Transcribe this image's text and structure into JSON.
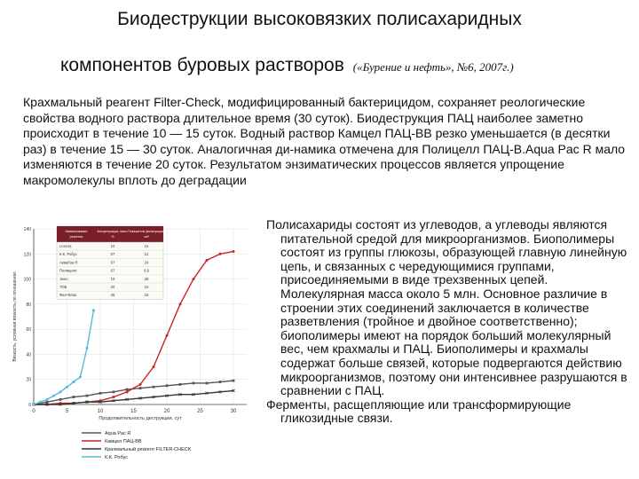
{
  "title_line1": "Биодеструкции высоковязких полисахаридных",
  "title_line2": "компонентов буровых растворов",
  "title_source": "(«Бурение и нефть», №6, 2007г.)",
  "intro_text": "Крахмальный реагент Filter-Check, модифицированный бактерицидом, сохраняет реологические свойства водного раствора длительное время (30 суток). Биодеструкция ПАЦ наиболее заметно происходит в течение 10 — 15 суток. Водный раствор Камцел ПАЦ-ВВ резко уменьшается (в десятки раз) в течение 15 — 30 суток. Аналогичная ди-намика отмечена для Полицелл ПАЦ-В.Aqua Pac R мало изменяются в течение 20 суток. Результатом энзиматических процессов является упрощение макромолекулы вплоть до деградации",
  "right_text_1": "Полисахариды состоят из углеводов, а углеводы являются питательной средой для микроорганизмов. Биополимеры состоят из группы глюкозы, образующей главную линейную цепь, и связанных с чередующимися группами, присоединяемыми в виде трехзвенных цепей. Молекулярная масса около 5 млн. Основное различие в строении этих соединений заключается в количестве разветвления (тройное и двойное соответственно); биополимеры имеют на порядок больший молекулярный вес, чем крахмалы и ПАЦ. Биополимеры и крахмалы содержат больше связей, которые подвергаются действию микроорганизмов, поэтому они интенсивнее разрушаются в сравнении с ПАЦ.",
  "right_text_2": "Ферменты, расщепляющие или трансформирующие гликозидные связи.",
  "figure": {
    "table": {
      "headers": [
        "Наименование реагента",
        "Концентрация, масс. %",
        "Показатель фильтрации, см³"
      ],
      "rows": [
        [
          "Lexeza",
          "10",
          "15"
        ],
        [
          "К.К. Робус",
          "07",
          "12"
        ],
        [
          "АкваПак R",
          "07",
          "24"
        ],
        [
          "Полицелл",
          "07",
          "6,6"
        ],
        [
          "Экол",
          "10",
          "28"
        ],
        [
          "ТОБ",
          "20",
          "10"
        ],
        [
          "Фил-Флок",
          "45",
          "18"
        ]
      ]
    },
    "chart_data": {
      "type": "line",
      "title": "",
      "ylabel": "Вязкость, условная вязкость по отношению",
      "xlabel": "Продолжительность деструкции, сут",
      "x_ticks": [
        "0",
        "5",
        "10",
        "15",
        "20",
        "25",
        "30"
      ],
      "y_ticks": [
        "0",
        "20",
        "40",
        "60",
        "80",
        "100",
        "120",
        "140"
      ],
      "xlim": [
        0,
        32
      ],
      "ylim": [
        0,
        140
      ],
      "series": [
        {
          "name": "Aqua Pac R",
          "color": "#555555",
          "marker": "square",
          "x": [
            0,
            2,
            4,
            6,
            8,
            10,
            12,
            14,
            16,
            18,
            20,
            22,
            24,
            26,
            28,
            30
          ],
          "y": [
            0,
            2,
            4,
            6,
            7,
            9,
            10,
            12,
            13,
            14,
            15,
            16,
            17,
            17,
            18,
            19
          ]
        },
        {
          "name": "Камцел ПАЦ-ВВ",
          "color": "#cc2222",
          "marker": "dot",
          "x": [
            0,
            2,
            4,
            6,
            8,
            10,
            12,
            14,
            16,
            18,
            20,
            22,
            24,
            26,
            28,
            30
          ],
          "y": [
            0,
            0,
            1,
            1,
            2,
            3,
            6,
            10,
            16,
            30,
            55,
            80,
            100,
            115,
            120,
            122
          ]
        },
        {
          "name": "Крахмальный реагент FILTER-CHECK",
          "color": "#333333",
          "marker": "x",
          "x": [
            0,
            2,
            4,
            6,
            8,
            10,
            12,
            14,
            16,
            18,
            20,
            22,
            24,
            26,
            28,
            30
          ],
          "y": [
            0,
            0,
            0,
            1,
            2,
            2,
            3,
            4,
            5,
            6,
            7,
            8,
            8,
            9,
            10,
            11
          ]
        },
        {
          "name": "К.К. Робус",
          "color": "#55bbdd",
          "marker": "dot",
          "x": [
            0,
            1,
            2,
            3,
            4,
            5,
            6,
            7,
            8,
            9
          ],
          "y": [
            0,
            2,
            4,
            7,
            10,
            14,
            18,
            22,
            45,
            75
          ]
        }
      ],
      "legend_position": "bottom"
    }
  }
}
